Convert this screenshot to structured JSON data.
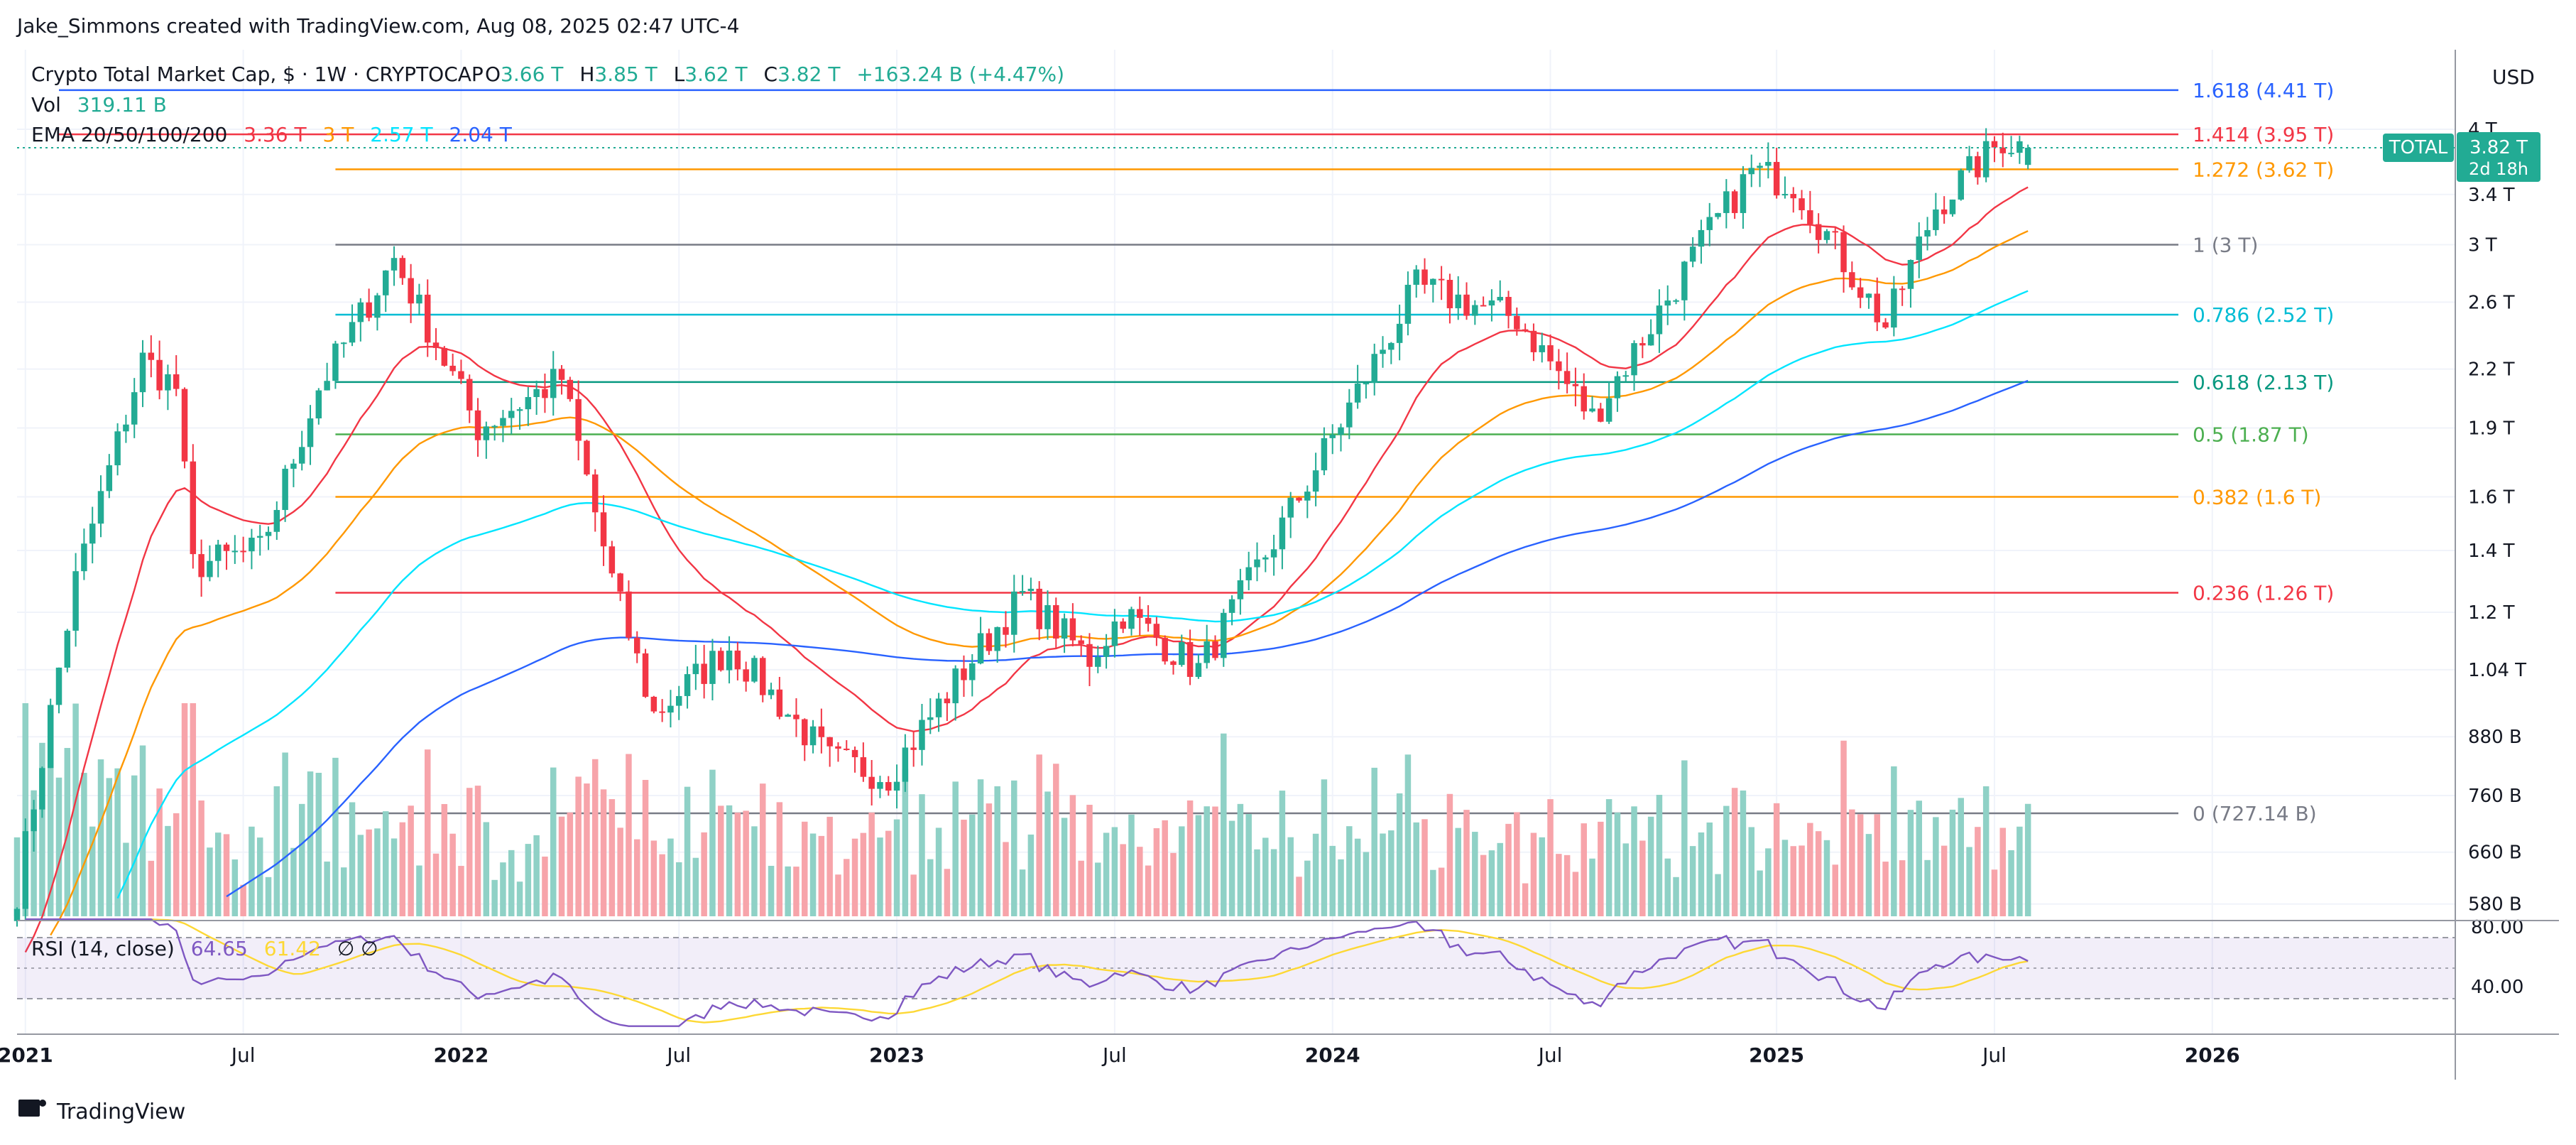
{
  "header": {
    "credit": "Jake_Simmons created with TradingView.com, Aug 08, 2025 02:47 UTC-4"
  },
  "legend": {
    "symbol": "Crypto Total Market Cap, $ · 1W · CRYPTOCAP",
    "ohlc": [
      {
        "label": "O",
        "value": "3.66 T"
      },
      {
        "label": "H",
        "value": "3.85 T"
      },
      {
        "label": "L",
        "value": "3.62 T"
      },
      {
        "label": "C",
        "value": "3.82 T"
      }
    ],
    "change": "+163.24 B (+4.47%)",
    "vol_label": "Vol",
    "vol_value": "319.11 B",
    "ema_label": "EMA 20/50/100/200",
    "ema_values": [
      {
        "value": "3.36 T",
        "color": "#f23645"
      },
      {
        "value": "3 T",
        "color": "#ff9800"
      },
      {
        "value": "2.57 T",
        "color": "#00e5ff"
      },
      {
        "value": "2.04 T",
        "color": "#2962ff"
      }
    ]
  },
  "price_axis": {
    "currency": "USD",
    "ticks": [
      "4 T",
      "3.4 T",
      "3 T",
      "2.6 T",
      "2.2 T",
      "1.9 T",
      "1.6 T",
      "1.4 T",
      "1.2 T",
      "1.04 T",
      "880 B",
      "760 B",
      "660 B",
      "580 B"
    ]
  },
  "current_label": {
    "symbol": "TOTAL",
    "price": "3.82 T",
    "countdown": "2d 18h",
    "color": "#22ab94"
  },
  "fib_levels": [
    {
      "label": "1.618 (4.41 T)",
      "value": 4.41,
      "color": "#2962ff"
    },
    {
      "label": "1.414 (3.95 T)",
      "value": 3.95,
      "color": "#f23645"
    },
    {
      "label": "1.272 (3.62 T)",
      "value": 3.62,
      "color": "#ff9800"
    },
    {
      "label": "1 (3 T)",
      "value": 3.0,
      "color": "#787b86"
    },
    {
      "label": "0.786 (2.52 T)",
      "value": 2.52,
      "color": "#00bcd4"
    },
    {
      "label": "0.618 (2.13 T)",
      "value": 2.13,
      "color": "#089981"
    },
    {
      "label": "0.5 (1.87 T)",
      "value": 1.87,
      "color": "#4caf50"
    },
    {
      "label": "0.382 (1.6 T)",
      "value": 1.6,
      "color": "#ff9800"
    },
    {
      "label": "0.236 (1.26 T)",
      "value": 1.26,
      "color": "#f23645"
    },
    {
      "label": "0 (727.14 B)",
      "value": 0.72714,
      "color": "#787b86"
    }
  ],
  "time_axis": {
    "ticks": [
      "2021",
      "Jul",
      "2022",
      "Jul",
      "2023",
      "Jul",
      "2024",
      "Jul",
      "2025",
      "Jul",
      "2026"
    ]
  },
  "rsi": {
    "label": "RSI (14, close)",
    "value": "64.65",
    "ma_value": "61.42",
    "symbols": "∅ ∅",
    "levels": [
      "80.00",
      "40.00"
    ]
  },
  "footer": {
    "brand": "TradingView"
  },
  "colors": {
    "up": "#22ab94",
    "down": "#f23645",
    "vol_up": "#8fd1c6",
    "vol_down": "#f7a4aa",
    "rsi_line": "#7e57c2",
    "rsi_ma": "#fdd835"
  },
  "chart_data": {
    "type": "candlestick",
    "title": "Crypto Total Market Cap, $ · 1W · CRYPTOCAP",
    "scale": "log",
    "ylim_trillions": [
      0.55,
      4.5
    ],
    "x_start": "2020-12-28",
    "x_end": "2026-07-27",
    "weekly_close_trillions": [
      {
        "date": "2020-12-28",
        "close": 0.6
      },
      {
        "date": "2021-02-15",
        "close": 1.3
      },
      {
        "date": "2021-04-12",
        "close": 2.25
      },
      {
        "date": "2021-05-10",
        "close": 2.1
      },
      {
        "date": "2021-05-24",
        "close": 1.35
      },
      {
        "date": "2021-07-19",
        "close": 1.4
      },
      {
        "date": "2021-09-06",
        "close": 2.1
      },
      {
        "date": "2021-11-08",
        "close": 2.9
      },
      {
        "date": "2022-01-17",
        "close": 1.9
      },
      {
        "date": "2022-03-28",
        "close": 2.15
      },
      {
        "date": "2022-05-09",
        "close": 1.3
      },
      {
        "date": "2022-06-13",
        "close": 0.93
      },
      {
        "date": "2022-08-15",
        "close": 1.1
      },
      {
        "date": "2022-11-07",
        "close": 0.83
      },
      {
        "date": "2022-12-26",
        "close": 0.8
      },
      {
        "date": "2023-03-13",
        "close": 1.1
      },
      {
        "date": "2023-04-17",
        "close": 1.25
      },
      {
        "date": "2023-06-12",
        "close": 1.07
      },
      {
        "date": "2023-07-10",
        "close": 1.2
      },
      {
        "date": "2023-09-11",
        "close": 1.04
      },
      {
        "date": "2023-12-04",
        "close": 1.6
      },
      {
        "date": "2024-03-11",
        "close": 2.7
      },
      {
        "date": "2024-06-03",
        "close": 2.5
      },
      {
        "date": "2024-08-05",
        "close": 1.95
      },
      {
        "date": "2024-11-11",
        "close": 3.1
      },
      {
        "date": "2024-12-16",
        "close": 3.6
      },
      {
        "date": "2025-01-20",
        "close": 3.5
      },
      {
        "date": "2025-04-07",
        "close": 2.45
      },
      {
        "date": "2025-05-19",
        "close": 3.3
      },
      {
        "date": "2025-07-14",
        "close": 3.9
      },
      {
        "date": "2025-08-04",
        "close": 3.82
      }
    ],
    "ema": [
      {
        "name": "EMA 20",
        "color": "#f23645",
        "last": 3.36
      },
      {
        "name": "EMA 50",
        "color": "#ff9800",
        "last": 3.0
      },
      {
        "name": "EMA 100",
        "color": "#00e5ff",
        "last": 2.57
      },
      {
        "name": "EMA 200",
        "color": "#2962ff",
        "last": 2.04
      }
    ],
    "rsi_levels": [
      80,
      40
    ]
  }
}
